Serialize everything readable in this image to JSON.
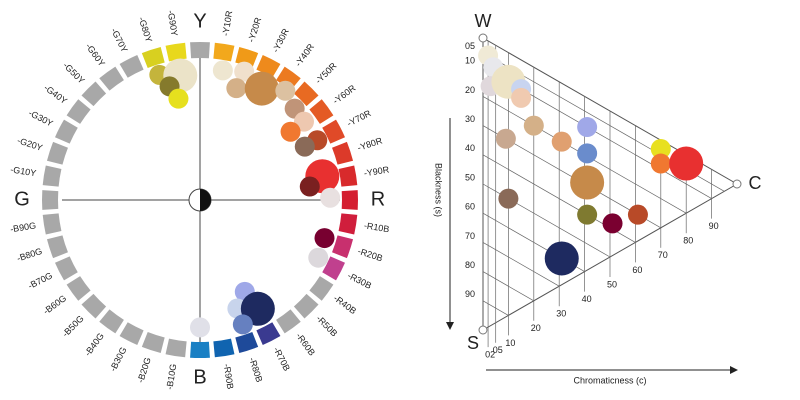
{
  "chart_data": [
    {
      "type": "color-circle",
      "hue_labels": [
        "Y",
        "-Y10R",
        "-Y20R",
        "-Y30R",
        "-Y40R",
        "-Y50R",
        "-Y60R",
        "-Y70R",
        "-Y80R",
        "-Y90R",
        "R",
        "-R10B",
        "-R20B",
        "-R30B",
        "-R40B",
        "-R50B",
        "-R60B",
        "-R70B",
        "-R80B",
        "-R90B",
        "B",
        "-B10G",
        "-B20G",
        "-B30G",
        "-B40G",
        "-B50G",
        "-B60G",
        "-B70G",
        "-B80G",
        "-B90G",
        "G",
        "-G10Y",
        "-G20Y",
        "-G30Y",
        "-G40Y",
        "-G50Y",
        "-G60Y",
        "-G70Y",
        "-G80Y",
        "-G90Y"
      ],
      "ring_colors": [
        "#a8a8a8",
        "#f2a81c",
        "#f09a18",
        "#ee8a1c",
        "#ec7a20",
        "#e86a22",
        "#e45a24",
        "#e04a28",
        "#dc3a2a",
        "#d82a2c",
        "#d41e30",
        "#d01e3c",
        "#c8306e",
        "#c0408e",
        "#a8a8a8",
        "#a8a8a8",
        "#a8a8a8",
        "#3a3a90",
        "#1e4a9a",
        "#1064b0",
        "#1a80c4",
        "#a8a8a8",
        "#a8a8a8",
        "#a8a8a8",
        "#a8a8a8",
        "#a8a8a8",
        "#a8a8a8",
        "#a8a8a8",
        "#a8a8a8",
        "#a8a8a8",
        "#a8a8a8",
        "#a8a8a8",
        "#a8a8a8",
        "#a8a8a8",
        "#a8a8a8",
        "#a8a8a8",
        "#a8a8a8",
        "#a8a8a8",
        "#d8d020",
        "#e8d81c"
      ],
      "points": {
        "hue": [
          342,
          351,
          345,
          348,
          10,
          19,
          18,
          29,
          38,
          46,
          53,
          63,
          53,
          63,
          79,
          83,
          89,
          107,
          116,
          154,
          161,
          152,
          161,
          180
        ],
        "chroma": [
          94,
          90,
          84,
          74,
          94,
          97,
          84,
          91,
          99,
          94,
          93,
          94,
          81,
          84,
          89,
          79,
          93,
          93,
          94,
          73,
          82,
          88,
          94,
          91
        ],
        "size": [
          1,
          2,
          1,
          1,
          1,
          1,
          1,
          2,
          1,
          1,
          1,
          1,
          1,
          1,
          2,
          1,
          1,
          1,
          1,
          1,
          1,
          2,
          1,
          1
        ],
        "colors": [
          "#c4b43c",
          "#ebe3c8",
          "#857a2c",
          "#e6e01e",
          "#eee6d0",
          "#f0e0cc",
          "#d4b088",
          "#c68a4a",
          "#dcc1a1",
          "#c09478",
          "#eec8b0",
          "#b84a28",
          "#f07830",
          "#8a6a58",
          "#e83030",
          "#7a2020",
          "#e8e0e0",
          "#780030",
          "#dcd8dc",
          "#9fa8e8",
          "#c8d4ec",
          "#1e2a60",
          "#6680c0",
          "#e0e0e8"
        ]
      }
    },
    {
      "type": "ncs-triangle",
      "corners": [
        "W",
        "S",
        "C"
      ],
      "xlabel": "Chromaticness (c)",
      "ylabel": "Blackness (s)",
      "xlim": [
        0,
        100
      ],
      "ylim": [
        0,
        100
      ],
      "xticks": [
        {
          "value": 2,
          "label": "02"
        },
        {
          "value": 5,
          "label": "05"
        },
        10,
        20,
        30,
        40,
        50,
        60,
        70,
        80,
        90
      ],
      "yticks": [
        {
          "value": 5,
          "label": "05"
        },
        10,
        20,
        30,
        40,
        50,
        60,
        70,
        80,
        90
      ],
      "points": {
        "x": [
          2,
          4,
          3,
          10,
          15,
          15,
          9,
          20,
          31,
          41,
          41,
          41,
          41,
          51,
          61,
          70,
          70,
          80,
          10,
          31
        ],
        "y": [
          5,
          8,
          15,
          10,
          10,
          13,
          30,
          20,
          20,
          10,
          19,
          29,
          40,
          38,
          30,
          3,
          8,
          3,
          50,
          60
        ],
        "size": [
          1,
          1,
          1,
          2,
          1,
          1,
          1,
          1,
          1,
          1,
          1,
          2,
          1,
          1,
          1,
          1,
          1,
          2,
          1,
          2
        ],
        "colors": [
          "#f0ead6",
          "#e8e8ec",
          "#e0d8dc",
          "#ede3c4",
          "#c8d4f0",
          "#f0cab0",
          "#c8a890",
          "#d4b088",
          "#e0a070",
          "#a0a8e8",
          "#6a8ccc",
          "#c68a4a",
          "#7f7a30",
          "#7a0030",
          "#b84a28",
          "#e8e020",
          "#f07830",
          "#e83030",
          "#8a6a58",
          "#1e2a60"
        ]
      }
    }
  ]
}
